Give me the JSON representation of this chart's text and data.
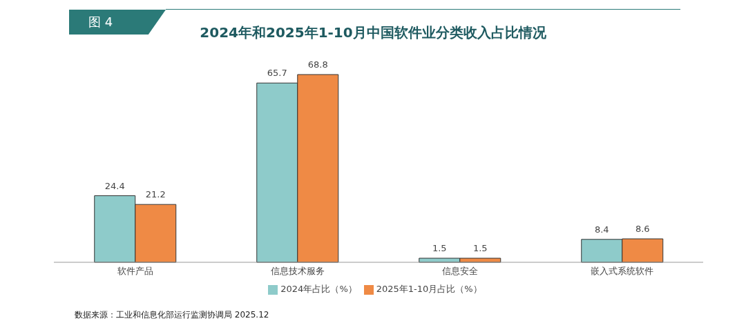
{
  "chart_data": {
    "type": "bar",
    "title": "2024年和2025年1-10月中国软件业分类收入占比情况",
    "categories": [
      "软件产品",
      "信息技术服务",
      "信息安全",
      "嵌入式系统软件"
    ],
    "series": [
      {
        "name": "2024年占比（%）",
        "color": "#8ecbca",
        "values": [
          24.4,
          65.7,
          1.5,
          8.4
        ]
      },
      {
        "name": "2025年1-10月占比（%）",
        "color": "#ef8a45",
        "values": [
          21.2,
          68.8,
          1.5,
          8.6
        ]
      }
    ],
    "data_labels": true,
    "legend": "bottom",
    "annotations": [
      "图 4",
      "数据来源：工业和信息化部运行监测协调局 2025.12"
    ]
  }
}
